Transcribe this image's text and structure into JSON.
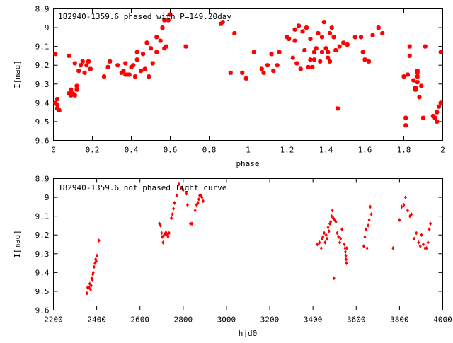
{
  "chart_data": [
    {
      "type": "scatter",
      "title": "182940-1359.6 phased with P=149.20day",
      "xlabel": "phase",
      "ylabel": "I[mag]",
      "xlim": [
        0,
        2
      ],
      "ylim": [
        8.9,
        9.6
      ],
      "y_inverted": true,
      "grid": false,
      "marker_color": "#ff0000",
      "x_ticks": [
        {
          "value": 0,
          "label": "0"
        },
        {
          "value": 0.2,
          "label": "0.2"
        },
        {
          "value": 0.4,
          "label": "0.4"
        },
        {
          "value": 0.6,
          "label": "0.6"
        },
        {
          "value": 0.8,
          "label": "0.8"
        },
        {
          "value": 1,
          "label": "1"
        },
        {
          "value": 1.2,
          "label": "1.2"
        },
        {
          "value": 1.4,
          "label": "1.4"
        },
        {
          "value": 1.6,
          "label": "1.6"
        },
        {
          "value": 1.8,
          "label": "1.8"
        },
        {
          "value": 2,
          "label": "2"
        }
      ],
      "y_ticks": [
        {
          "value": 8.9,
          "label": "8.9"
        },
        {
          "value": 9.0,
          "label": "9"
        },
        {
          "value": 9.1,
          "label": "9.1"
        },
        {
          "value": 9.2,
          "label": "9.2"
        },
        {
          "value": 9.3,
          "label": "9.3"
        },
        {
          "value": 9.4,
          "label": "9.4"
        },
        {
          "value": 9.5,
          "label": "9.5"
        },
        {
          "value": 9.6,
          "label": "9.6"
        }
      ],
      "points": [
        [
          0.01,
          9.14
        ],
        [
          0.01,
          9.4
        ],
        [
          0.02,
          9.41
        ],
        [
          0.02,
          9.43
        ],
        [
          0.02,
          9.38
        ],
        [
          0.03,
          9.44
        ],
        [
          0.08,
          9.15
        ],
        [
          0.08,
          9.35
        ],
        [
          0.09,
          9.36
        ],
        [
          0.09,
          9.33
        ],
        [
          0.1,
          9.35
        ],
        [
          0.11,
          9.36
        ],
        [
          0.11,
          9.19
        ],
        [
          0.12,
          9.33
        ],
        [
          0.12,
          9.31
        ],
        [
          0.13,
          9.23
        ],
        [
          0.14,
          9.2
        ],
        [
          0.15,
          9.18
        ],
        [
          0.16,
          9.24
        ],
        [
          0.17,
          9.2
        ],
        [
          0.18,
          9.18
        ],
        [
          0.19,
          9.22
        ],
        [
          0.19,
          9.22
        ],
        [
          0.26,
          9.26
        ],
        [
          0.28,
          9.21
        ],
        [
          0.29,
          9.18
        ],
        [
          0.33,
          9.2
        ],
        [
          0.35,
          9.24
        ],
        [
          0.36,
          9.23
        ],
        [
          0.37,
          9.25
        ],
        [
          0.37,
          9.19
        ],
        [
          0.38,
          9.25
        ],
        [
          0.39,
          9.25
        ],
        [
          0.4,
          9.21
        ],
        [
          0.41,
          9.2
        ],
        [
          0.42,
          9.26
        ],
        [
          0.43,
          9.17
        ],
        [
          0.43,
          9.13
        ],
        [
          0.45,
          9.23
        ],
        [
          0.46,
          9.14
        ],
        [
          0.47,
          9.22
        ],
        [
          0.48,
          9.08
        ],
        [
          0.49,
          9.26
        ],
        [
          0.5,
          9.11
        ],
        [
          0.51,
          9.19
        ],
        [
          0.53,
          9.13
        ],
        [
          0.53,
          9.05
        ],
        [
          0.55,
          9.07
        ],
        [
          0.56,
          9.0
        ],
        [
          0.57,
          9.11
        ],
        [
          0.57,
          8.96
        ],
        [
          0.58,
          9.1
        ],
        [
          0.59,
          8.96
        ],
        [
          0.6,
          8.93
        ],
        [
          0.68,
          9.1
        ],
        [
          0.86,
          8.98
        ],
        [
          0.87,
          8.97
        ],
        [
          0.91,
          9.24
        ],
        [
          0.93,
          9.03
        ],
        [
          0.97,
          9.24
        ],
        [
          0.99,
          9.27
        ],
        [
          1.03,
          9.13
        ],
        [
          1.07,
          9.22
        ],
        [
          1.08,
          9.24
        ],
        [
          1.1,
          9.2
        ],
        [
          1.12,
          9.14
        ],
        [
          1.13,
          9.23
        ],
        [
          1.15,
          9.2
        ],
        [
          1.16,
          9.13
        ],
        [
          1.2,
          9.05
        ],
        [
          1.21,
          9.06
        ],
        [
          1.23,
          9.16
        ],
        [
          1.24,
          9.01
        ],
        [
          1.24,
          9.07
        ],
        [
          1.25,
          9.19
        ],
        [
          1.26,
          8.99
        ],
        [
          1.27,
          9.22
        ],
        [
          1.28,
          9.02
        ],
        [
          1.29,
          9.12
        ],
        [
          1.3,
          9.0
        ],
        [
          1.31,
          9.21
        ],
        [
          1.32,
          9.06
        ],
        [
          1.32,
          9.17
        ],
        [
          1.33,
          9.21
        ],
        [
          1.34,
          9.17
        ],
        [
          1.34,
          9.13
        ],
        [
          1.35,
          9.11
        ],
        [
          1.36,
          9.03
        ],
        [
          1.37,
          9.18
        ],
        [
          1.38,
          9.05
        ],
        [
          1.38,
          9.13
        ],
        [
          1.39,
          8.97
        ],
        [
          1.4,
          9.11
        ],
        [
          1.41,
          9.16
        ],
        [
          1.41,
          9.13
        ],
        [
          1.42,
          9.03
        ],
        [
          1.42,
          9.18
        ],
        [
          1.43,
          9.0
        ],
        [
          1.44,
          9.05
        ],
        [
          1.45,
          9.12
        ],
        [
          1.46,
          9.43
        ],
        [
          1.47,
          9.1
        ],
        [
          1.49,
          9.08
        ],
        [
          1.51,
          9.09
        ],
        [
          1.55,
          9.05
        ],
        [
          1.58,
          9.05
        ],
        [
          1.59,
          9.13
        ],
        [
          1.6,
          9.17
        ],
        [
          1.62,
          9.18
        ],
        [
          1.64,
          9.04
        ],
        [
          1.67,
          9.0
        ],
        [
          1.69,
          9.03
        ],
        [
          1.8,
          9.26
        ],
        [
          1.81,
          9.48
        ],
        [
          1.81,
          9.52
        ],
        [
          1.82,
          9.25
        ],
        [
          1.83,
          9.1
        ],
        [
          1.83,
          9.15
        ],
        [
          1.85,
          9.28
        ],
        [
          1.86,
          9.32
        ],
        [
          1.86,
          9.33
        ],
        [
          1.87,
          9.23
        ],
        [
          1.87,
          9.24
        ],
        [
          1.87,
          9.26
        ],
        [
          1.87,
          9.29
        ],
        [
          1.88,
          9.37
        ],
        [
          1.89,
          9.31
        ],
        [
          1.9,
          9.48
        ],
        [
          1.91,
          9.1
        ],
        [
          1.95,
          9.47
        ],
        [
          1.96,
          9.48
        ],
        [
          1.97,
          9.5
        ],
        [
          1.97,
          9.45
        ],
        [
          1.98,
          9.42
        ],
        [
          1.99,
          9.4
        ],
        [
          1.99,
          9.13
        ]
      ]
    },
    {
      "type": "scatter",
      "title": "182940-1359.6 not phased light curve",
      "xlabel": "hjd0",
      "ylabel": "I[mag]",
      "xlim": [
        2200,
        4000
      ],
      "ylim": [
        8.9,
        9.6
      ],
      "y_inverted": true,
      "grid": false,
      "marker_color": "#ff0000",
      "x_ticks": [
        {
          "value": 2200,
          "label": "2200"
        },
        {
          "value": 2400,
          "label": "2400"
        },
        {
          "value": 2600,
          "label": "2600"
        },
        {
          "value": 2800,
          "label": "2800"
        },
        {
          "value": 3000,
          "label": "3000"
        },
        {
          "value": 3200,
          "label": "3200"
        },
        {
          "value": 3400,
          "label": "3400"
        },
        {
          "value": 3600,
          "label": "3600"
        },
        {
          "value": 3800,
          "label": "3800"
        },
        {
          "value": 4000,
          "label": "4000"
        }
      ],
      "y_ticks": [
        {
          "value": 8.9,
          "label": "8.9"
        },
        {
          "value": 9.0,
          "label": "9"
        },
        {
          "value": 9.1,
          "label": "9.1"
        },
        {
          "value": 9.2,
          "label": "9.2"
        },
        {
          "value": 9.3,
          "label": "9.3"
        },
        {
          "value": 9.4,
          "label": "9.4"
        },
        {
          "value": 9.5,
          "label": "9.5"
        },
        {
          "value": 9.6,
          "label": "9.6"
        }
      ],
      "points": [
        [
          2355,
          9.51
        ],
        [
          2358,
          9.48
        ],
        [
          2365,
          9.48
        ],
        [
          2368,
          9.46
        ],
        [
          2372,
          9.49
        ],
        [
          2375,
          9.47
        ],
        [
          2377,
          9.43
        ],
        [
          2380,
          9.44
        ],
        [
          2382,
          9.41
        ],
        [
          2384,
          9.4
        ],
        [
          2388,
          9.37
        ],
        [
          2392,
          9.35
        ],
        [
          2395,
          9.33
        ],
        [
          2398,
          9.34
        ],
        [
          2401,
          9.31
        ],
        [
          2410,
          9.23
        ],
        [
          2690,
          9.14
        ],
        [
          2695,
          9.15
        ],
        [
          2700,
          9.19
        ],
        [
          2703,
          9.21
        ],
        [
          2707,
          9.24
        ],
        [
          2712,
          9.2
        ],
        [
          2718,
          9.19
        ],
        [
          2722,
          9.19
        ],
        [
          2728,
          9.2
        ],
        [
          2730,
          9.21
        ],
        [
          2735,
          9.19
        ],
        [
          2745,
          9.11
        ],
        [
          2750,
          9.09
        ],
        [
          2755,
          9.06
        ],
        [
          2760,
          9.03
        ],
        [
          2770,
          8.99
        ],
        [
          2780,
          8.93
        ],
        [
          2790,
          8.95
        ],
        [
          2800,
          8.96
        ],
        [
          2815,
          8.98
        ],
        [
          2820,
          9.04
        ],
        [
          2833,
          9.14
        ],
        [
          2840,
          9.14
        ],
        [
          2855,
          9.07
        ],
        [
          2862,
          9.04
        ],
        [
          2868,
          9.03
        ],
        [
          2872,
          9.01
        ],
        [
          2876,
          8.99
        ],
        [
          2882,
          8.99
        ],
        [
          2887,
          9.0
        ],
        [
          2892,
          9.02
        ],
        [
          3420,
          9.25
        ],
        [
          3430,
          9.24
        ],
        [
          3438,
          9.27
        ],
        [
          3442,
          9.22
        ],
        [
          3446,
          9.21
        ],
        [
          3452,
          9.19
        ],
        [
          3456,
          9.24
        ],
        [
          3461,
          9.2
        ],
        [
          3465,
          9.22
        ],
        [
          3470,
          9.16
        ],
        [
          3474,
          9.18
        ],
        [
          3478,
          9.14
        ],
        [
          3482,
          9.13
        ],
        [
          3486,
          9.1
        ],
        [
          3490,
          9.07
        ],
        [
          3494,
          9.11
        ],
        [
          3497,
          9.43
        ],
        [
          3500,
          9.12
        ],
        [
          3506,
          9.13
        ],
        [
          3512,
          9.19
        ],
        [
          3518,
          9.21
        ],
        [
          3524,
          9.24
        ],
        [
          3528,
          9.22
        ],
        [
          3534,
          9.17
        ],
        [
          3545,
          9.25
        ],
        [
          3548,
          9.27
        ],
        [
          3550,
          9.29
        ],
        [
          3552,
          9.31
        ],
        [
          3553,
          9.33
        ],
        [
          3555,
          9.35
        ],
        [
          3556,
          9.27
        ],
        [
          3635,
          9.26
        ],
        [
          3640,
          9.21
        ],
        [
          3645,
          9.17
        ],
        [
          3650,
          9.27
        ],
        [
          3655,
          9.15
        ],
        [
          3660,
          9.12
        ],
        [
          3665,
          9.05
        ],
        [
          3670,
          9.09
        ],
        [
          3770,
          9.27
        ],
        [
          3800,
          9.12
        ],
        [
          3810,
          9.05
        ],
        [
          3820,
          9.04
        ],
        [
          3828,
          9.0
        ],
        [
          3838,
          9.07
        ],
        [
          3848,
          9.1
        ],
        [
          3855,
          9.09
        ],
        [
          3868,
          9.22
        ],
        [
          3878,
          9.19
        ],
        [
          3888,
          9.24
        ],
        [
          3896,
          9.26
        ],
        [
          3902,
          9.2
        ],
        [
          3910,
          9.25
        ],
        [
          3918,
          9.27
        ],
        [
          3925,
          9.27
        ],
        [
          3932,
          9.24
        ],
        [
          3938,
          9.17
        ],
        [
          3943,
          9.14
        ]
      ]
    }
  ]
}
